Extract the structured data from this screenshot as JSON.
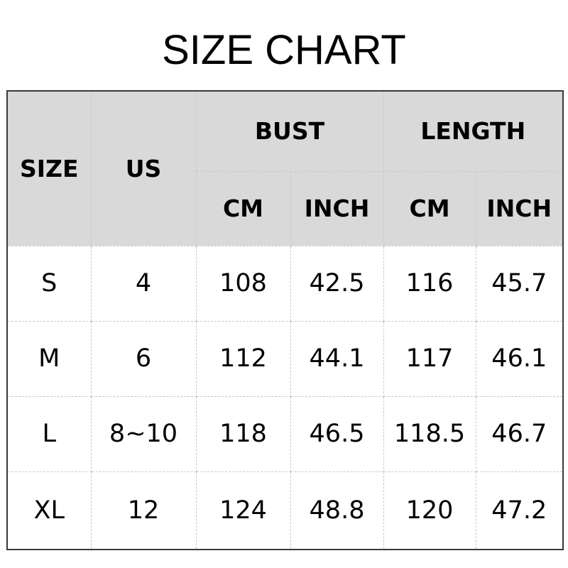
{
  "title": "SIZE CHART",
  "headers": {
    "size": "SIZE",
    "us": "US",
    "bust": "BUST",
    "length": "LENGTH",
    "cm": "CM",
    "inch": "INCH"
  },
  "rows": [
    [
      "S",
      "4",
      "108",
      "42.5",
      "116",
      "45.7"
    ],
    [
      "M",
      "6",
      "112",
      "44.1",
      "117",
      "46.1"
    ],
    [
      "L",
      "8~10",
      "118",
      "46.5",
      "118.5",
      "46.7"
    ],
    [
      "XL",
      "12",
      "124",
      "48.8",
      "120",
      "47.2"
    ]
  ],
  "colors": {
    "header_bg": "#d9d9d9"
  }
}
